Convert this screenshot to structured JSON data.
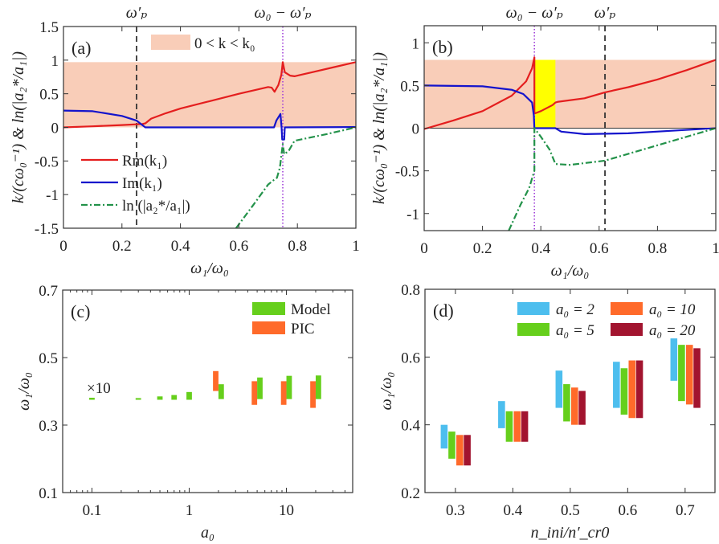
{
  "figure": {
    "colors": {
      "rm": "#e41e1e",
      "im": "#1414cc",
      "ln": "#23924a",
      "shade": "#f9cdb8",
      "highlight": "#ffff00",
      "dotted": "#a040d8",
      "dashed": "#333333",
      "model": "#66cf1c",
      "pic": "#ff6a2a",
      "a0_2": "#4dbeee",
      "a0_5": "#66cf1c",
      "a0_10": "#ff6a2a",
      "a0_20": "#a2142f"
    }
  },
  "chart_data": [
    {
      "panel": "(a)",
      "type": "line",
      "xlabel": "ω₁/ω₀",
      "ylabel": "k/(cω₀⁻¹) & ln(|a₂*/a₁|)",
      "xlim": [
        0,
        1
      ],
      "ylim": [
        -1.5,
        1.5
      ],
      "xticks": [
        "0",
        "0.2",
        "0.4",
        "0.6",
        "0.8",
        "1"
      ],
      "yticks": [
        "-1.5",
        "-1",
        "-0.5",
        "0",
        "0.5",
        "1",
        "1.5"
      ],
      "shaded_band": {
        "label": "0 < k < k₀",
        "y": [
          0,
          0.97
        ]
      },
      "vlines": [
        {
          "x": 0.25,
          "style": "dashed",
          "label": "ω′ₚ"
        },
        {
          "x": 0.75,
          "style": "dotted",
          "label": "ω₀ − ω′ₚ"
        }
      ],
      "legend_position": "bottom-left",
      "series": [
        {
          "name": "Rm(k₁)",
          "style": "solid",
          "color": "rm",
          "points": [
            [
              0,
              0
            ],
            [
              0.1,
              0.015
            ],
            [
              0.2,
              0.035
            ],
            [
              0.27,
              0.05
            ],
            [
              0.28,
              0.06
            ],
            [
              0.3,
              0.13
            ],
            [
              0.35,
              0.21
            ],
            [
              0.4,
              0.28
            ],
            [
              0.5,
              0.39
            ],
            [
              0.6,
              0.5
            ],
            [
              0.7,
              0.6
            ],
            [
              0.712,
              0.59
            ],
            [
              0.722,
              0.53
            ],
            [
              0.735,
              0.63
            ],
            [
              0.745,
              0.78
            ],
            [
              0.75,
              0.97
            ],
            [
              0.757,
              0.82
            ],
            [
              0.775,
              0.77
            ],
            [
              0.79,
              0.76
            ],
            [
              0.85,
              0.82
            ],
            [
              0.92,
              0.89
            ],
            [
              1,
              0.97
            ]
          ]
        },
        {
          "name": "Im(k₁)",
          "style": "solid",
          "color": "im",
          "points": [
            [
              0,
              0.25
            ],
            [
              0.1,
              0.24
            ],
            [
              0.2,
              0.17
            ],
            [
              0.25,
              0.1
            ],
            [
              0.28,
              0
            ],
            [
              0.72,
              0
            ],
            [
              0.728,
              0.1
            ],
            [
              0.742,
              0.2
            ],
            [
              0.746,
              0
            ],
            [
              0.748,
              -0.18
            ],
            [
              0.755,
              -0.18
            ],
            [
              0.757,
              0
            ],
            [
              1,
              0.005
            ]
          ]
        },
        {
          "name": "ln (|a₂*/a₁|)",
          "style": "dashdot",
          "color": "ln",
          "points": [
            [
              0.59,
              -1.5
            ],
            [
              0.65,
              -1.15
            ],
            [
              0.7,
              -0.85
            ],
            [
              0.72,
              -0.78
            ],
            [
              0.73,
              -0.75
            ],
            [
              0.74,
              -0.6
            ],
            [
              0.75,
              -0.25
            ],
            [
              0.755,
              -0.4
            ],
            [
              0.77,
              -0.35
            ],
            [
              0.79,
              -0.2
            ],
            [
              0.9,
              -0.1
            ],
            [
              1,
              0
            ]
          ]
        }
      ]
    },
    {
      "panel": "(b)",
      "type": "line",
      "xlabel": "ω₁/ω₀",
      "ylabel": "k/(cω₀⁻¹) & ln(|a₂*/a₁|)",
      "xlim": [
        0,
        1
      ],
      "ylim": [
        -1.2,
        1.2
      ],
      "xticks": [
        "0",
        "0.2",
        "0.4",
        "0.6",
        "0.8",
        "1"
      ],
      "yticks": [
        "-1",
        "-0.5",
        "0",
        "0.5",
        "1"
      ],
      "shaded_band": {
        "y": [
          0,
          0.8
        ]
      },
      "highlight_band": {
        "x": [
          0.38,
          0.45
        ],
        "y": [
          0,
          0.8
        ]
      },
      "vlines": [
        {
          "x": 0.378,
          "style": "dotted",
          "label": "ω₀ − ω′ₚ"
        },
        {
          "x": 0.62,
          "style": "dashed",
          "label": "ω′ₚ"
        }
      ],
      "series": [
        {
          "style": "solid",
          "color": "rm",
          "points": [
            [
              0,
              -0.01
            ],
            [
              0.1,
              0.09
            ],
            [
              0.2,
              0.2
            ],
            [
              0.3,
              0.38
            ],
            [
              0.35,
              0.55
            ],
            [
              0.37,
              0.7
            ],
            [
              0.378,
              0.83
            ],
            [
              0.378,
              0.17
            ],
            [
              0.4,
              0.2
            ],
            [
              0.44,
              0.27
            ],
            [
              0.45,
              0.3
            ],
            [
              0.46,
              0.31
            ],
            [
              0.55,
              0.35
            ],
            [
              0.62,
              0.42
            ],
            [
              0.7,
              0.48
            ],
            [
              0.8,
              0.57
            ],
            [
              0.9,
              0.68
            ],
            [
              1,
              0.8
            ]
          ]
        },
        {
          "style": "solid",
          "color": "im",
          "points": [
            [
              0,
              0.5
            ],
            [
              0.2,
              0.49
            ],
            [
              0.3,
              0.45
            ],
            [
              0.34,
              0.4
            ],
            [
              0.37,
              0.3
            ],
            [
              0.376,
              0.15
            ],
            [
              0.378,
              0
            ],
            [
              0.45,
              0
            ],
            [
              0.47,
              -0.04
            ],
            [
              0.55,
              -0.07
            ],
            [
              0.7,
              -0.06
            ],
            [
              0.85,
              -0.03
            ],
            [
              1,
              0
            ]
          ]
        },
        {
          "style": "dashdot",
          "color": "ln",
          "points": [
            [
              0.29,
              -1.2
            ],
            [
              0.33,
              -0.9
            ],
            [
              0.36,
              -0.7
            ],
            [
              0.378,
              -0.5
            ],
            [
              0.378,
              0
            ],
            [
              0.4,
              -0.1
            ],
            [
              0.43,
              -0.25
            ],
            [
              0.45,
              -0.42
            ],
            [
              0.5,
              -0.43
            ],
            [
              0.62,
              -0.38
            ],
            [
              0.8,
              -0.2
            ],
            [
              1,
              0
            ]
          ]
        }
      ]
    },
    {
      "panel": "(c)",
      "type": "bar",
      "xlabel": "a₀",
      "ylabel": "ω₁/ω₀",
      "xscale": "log",
      "xlim": [
        0.05,
        48
      ],
      "ylim": [
        0.1,
        0.7
      ],
      "xticks": [
        {
          "v": 0.1,
          "t": "0.1"
        },
        {
          "v": 1,
          "t": "1"
        },
        {
          "v": 10,
          "t": "10"
        }
      ],
      "yticks": [
        "0.1",
        "0.3",
        "0.5",
        "0.7"
      ],
      "annotation": "×10",
      "legend_position": "top-right",
      "series": [
        {
          "name": "Model",
          "color": "model",
          "bars": [
            [
              0.1,
              0.375,
              0.381
            ],
            [
              0.3,
              0.375,
              0.38
            ],
            [
              0.5,
              0.375,
              0.385
            ],
            [
              0.7,
              0.375,
              0.389
            ],
            [
              1,
              0.375,
              0.398
            ],
            [
              2,
              0.377,
              0.421
            ],
            [
              5,
              0.377,
              0.441
            ],
            [
              10,
              0.377,
              0.446
            ],
            [
              20,
              0.377,
              0.447
            ]
          ]
        },
        {
          "name": "PIC",
          "color": "pic",
          "bars": [
            [
              2,
              0.401,
              0.46
            ],
            [
              5,
              0.36,
              0.43
            ],
            [
              10,
              0.36,
              0.43
            ],
            [
              20,
              0.351,
              0.43
            ]
          ]
        }
      ]
    },
    {
      "panel": "(d)",
      "type": "bar",
      "xlabel": "n_ini/n′_cr0",
      "ylabel": "ω₁/ω₀",
      "xlim": [
        0.247,
        0.752
      ],
      "ylim": [
        0.2,
        0.8
      ],
      "categories": [
        0.3,
        0.4,
        0.5,
        0.6,
        0.7
      ],
      "xticks": [
        "0.3",
        "0.4",
        "0.5",
        "0.6",
        "0.7"
      ],
      "yticks": [
        "0.2",
        "0.4",
        "0.6",
        "0.8"
      ],
      "legend_position": "top-right",
      "series": [
        {
          "name": "a₀ = 2",
          "color": "a0_2",
          "ranges": [
            [
              0.33,
              0.4
            ],
            [
              0.39,
              0.47
            ],
            [
              0.45,
              0.56
            ],
            [
              0.45,
              0.586
            ],
            [
              0.53,
              0.655
            ]
          ]
        },
        {
          "name": "a₀ = 5",
          "color": "a0_5",
          "ranges": [
            [
              0.3,
              0.38
            ],
            [
              0.35,
              0.44
            ],
            [
              0.41,
              0.52
            ],
            [
              0.43,
              0.567
            ],
            [
              0.47,
              0.636
            ]
          ]
        },
        {
          "name": "a₀ = 10",
          "color": "a0_10",
          "ranges": [
            [
              0.28,
              0.37
            ],
            [
              0.35,
              0.44
            ],
            [
              0.4,
              0.51
            ],
            [
              0.42,
              0.59
            ],
            [
              0.46,
              0.636
            ]
          ]
        },
        {
          "name": "a₀ = 20",
          "color": "a0_20",
          "ranges": [
            [
              0.28,
              0.37
            ],
            [
              0.35,
              0.44
            ],
            [
              0.4,
              0.5
            ],
            [
              0.42,
              0.59
            ],
            [
              0.45,
              0.626
            ]
          ]
        }
      ]
    }
  ]
}
